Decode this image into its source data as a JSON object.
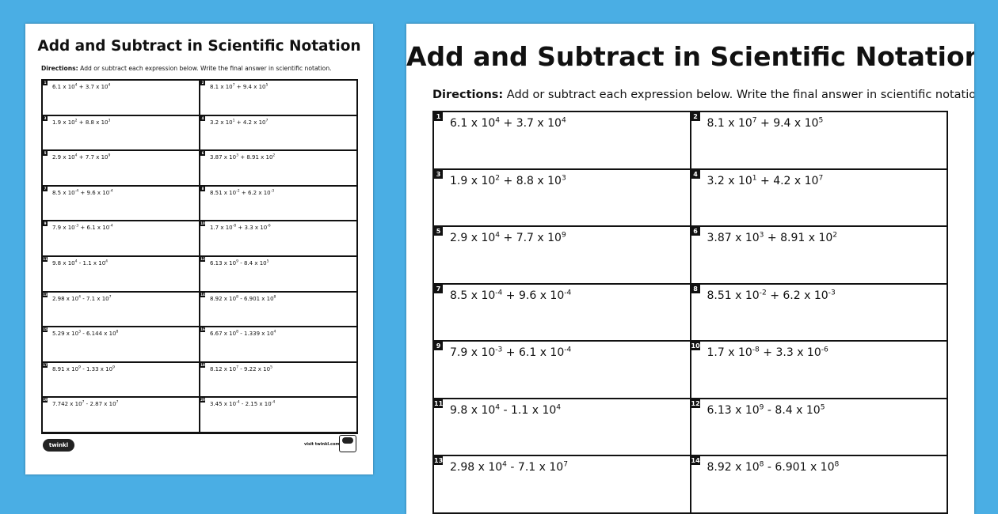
{
  "colors": {
    "background": "#4aaee4",
    "page": "#ffffff",
    "ink": "#111111"
  },
  "worksheet": {
    "title": "Add and Subtract in Scientific Notation",
    "directions_label": "Directions:",
    "directions_text": " Add or subtract each expression below. Write the final answer in scientific notation.",
    "problems": [
      {
        "n": "1",
        "a": "6.1 x 10",
        "ae": "4",
        "op": " + ",
        "b": "3.7 x 10",
        "be": "4"
      },
      {
        "n": "2",
        "a": "8.1 x 10",
        "ae": "7",
        "op": " + ",
        "b": "9.4 x 10",
        "be": "5"
      },
      {
        "n": "3",
        "a": "1.9 x 10",
        "ae": "2",
        "op": " + ",
        "b": "8.8  x 10",
        "be": "3"
      },
      {
        "n": "4",
        "a": "3.2 x 10",
        "ae": "1",
        "op": " + ",
        "b": "4.2  x 10",
        "be": "7"
      },
      {
        "n": "5",
        "a": "2.9 x 10",
        "ae": "4",
        "op": " + ",
        "b": "7.7 x 10",
        "be": "9"
      },
      {
        "n": "6",
        "a": "3.87 x 10",
        "ae": "3",
        "op": " + ",
        "b": "8.91 x 10",
        "be": "2"
      },
      {
        "n": "7",
        "a": "8.5 x 10",
        "ae": "-4",
        "op": " + ",
        "b": "9.6 x 10",
        "be": "-4"
      },
      {
        "n": "8",
        "a": "8.51 x 10",
        "ae": "-2",
        "op": " + ",
        "b": "6.2 x 10",
        "be": "-3"
      },
      {
        "n": "9",
        "a": "7.9  x 10",
        "ae": "-3",
        "op": " + ",
        "b": "6.1 x 10",
        "be": "-4"
      },
      {
        "n": "10",
        "a": "1.7  x 10",
        "ae": "-8",
        "op": " + ",
        "b": "3.3  x 10",
        "be": "-6"
      },
      {
        "n": "11",
        "a": "9.8 x 10",
        "ae": "4",
        "op": " - ",
        "b": "1.1 x 10",
        "be": "4"
      },
      {
        "n": "12",
        "a": "6.13 x 10",
        "ae": "9",
        "op": " - ",
        "b": "8.4 x 10",
        "be": "5"
      },
      {
        "n": "13",
        "a": "2.98 x 10",
        "ae": "4",
        "op": " - ",
        "b": "7.1 x 10",
        "be": "7"
      },
      {
        "n": "14",
        "a": "8.92 x 10",
        "ae": "8",
        "op": " - ",
        "b": "6.901 x 10",
        "be": "8"
      },
      {
        "n": "15",
        "a": "5.29 x 10",
        "ae": "3",
        "op": " - ",
        "b": "6.144 x 10",
        "be": "8"
      },
      {
        "n": "16",
        "a": "6.67 x 10",
        "ae": "8",
        "op": " - ",
        "b": "1.339 x 10",
        "be": "4"
      },
      {
        "n": "17",
        "a": "8.91 x 10",
        "ae": "9",
        "op": " - ",
        "b": "1.33 x 10",
        "be": "9"
      },
      {
        "n": "18",
        "a": "8.12 x 10",
        "ae": "7",
        "op": " - ",
        "b": "9.22 x 10",
        "be": "5"
      },
      {
        "n": "19",
        "a": "7.742 x 10",
        "ae": "7",
        "op": " - ",
        "b": "2.87 x 10",
        "be": "7"
      },
      {
        "n": "20",
        "a": "3.45 x 10",
        "ae": "-4",
        "op": " - ",
        "b": "2.15 x 10",
        "be": "-4"
      }
    ],
    "right_visible_count": 14
  },
  "footer": {
    "logo": "twinkl",
    "visit": "visit twinkl.com"
  }
}
